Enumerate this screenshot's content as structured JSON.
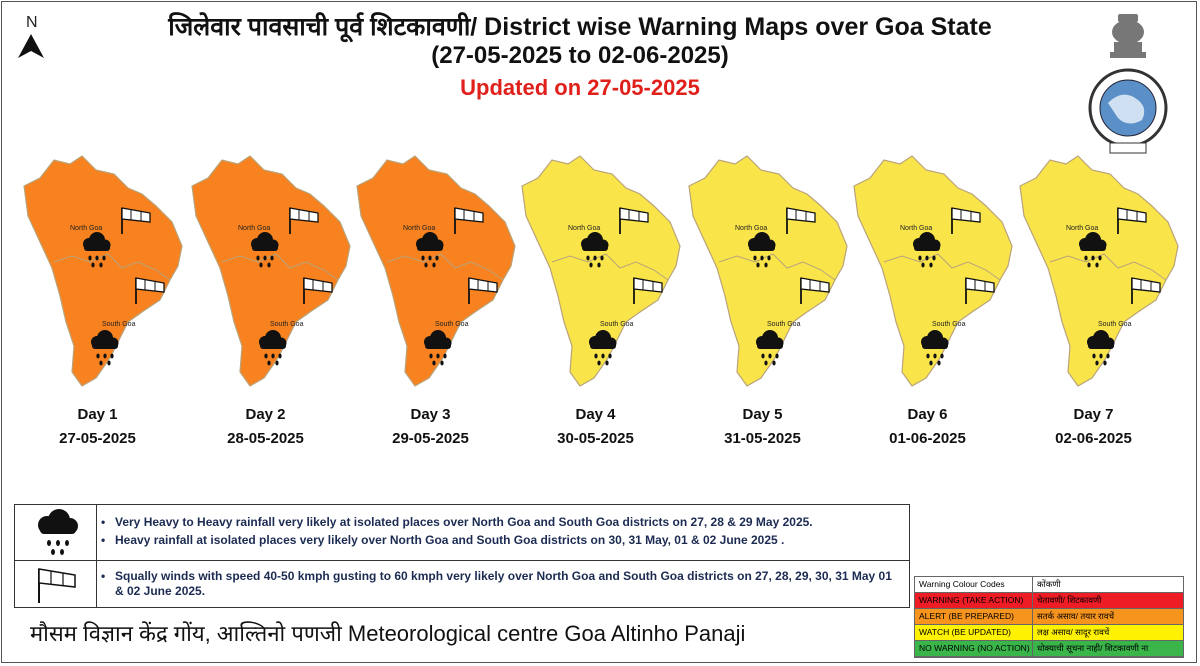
{
  "north_label": "N",
  "title": {
    "line1": "जिलेवार पावसाची पूर्व शिटकावणी/ District wise Warning Maps over Goa State",
    "line2": "(27-05-2025 to 02-06-2025)",
    "updated": "Updated on 27-05-2025"
  },
  "colors": {
    "warning": "#f58220",
    "alert": "#fdb813",
    "watch": "#f7ea5b",
    "no_warning": "#3db94a",
    "map_yellow": "#f9e54a",
    "map_orange": "#f8821f",
    "updated_text": "#e0201b"
  },
  "district_labels": {
    "north": "North Goa",
    "south": "South Goa"
  },
  "days": [
    {
      "label": "Day 1",
      "date": "27-05-2025",
      "level": "warning"
    },
    {
      "label": "Day 2",
      "date": "28-05-2025",
      "level": "warning"
    },
    {
      "label": "Day 3",
      "date": "29-05-2025",
      "level": "warning"
    },
    {
      "label": "Day 4",
      "date": "30-05-2025",
      "level": "watch"
    },
    {
      "label": "Day 5",
      "date": "31-05-2025",
      "level": "watch"
    },
    {
      "label": "Day 6",
      "date": "01-06-2025",
      "level": "watch"
    },
    {
      "label": "Day 7",
      "date": "02-06-2025",
      "level": "watch"
    }
  ],
  "legend": {
    "rain_icon": "heavy-rain-cloud-icon",
    "rain_lines": [
      "Very Heavy to Heavy rainfall very likely at isolated places over North Goa and South Goa districts on 27, 28 & 29 May 2025.",
      "Heavy rainfall at isolated places very likely over North Goa and South Goa districts on 30, 31 May, 01 & 02 June 2025 ."
    ],
    "wind_icon": "windsock-icon",
    "wind_lines": [
      "Squally winds with speed 40-50 kmph gusting to 60 kmph very likely  over North Goa and South Goa districts on 27, 28, 29, 30, 31 May 01 & 02 June 2025."
    ]
  },
  "footer": "मौसम विज्ञान केंद्र गोंय, आल्तिनो पणजी  Meteorological centre Goa Altinho Panaji",
  "colour_codes": {
    "header": [
      "Warning Colour Codes",
      "कोंकणी"
    ],
    "rows": [
      {
        "code": "WARNING (TAKE ACTION)",
        "konkani": "चेतावणी/ शिटकावणी",
        "color": "#ee1c24"
      },
      {
        "code": "ALERT (BE PREPARED)",
        "konkani": "सतर्क  असाव/ तयार रावचें",
        "color": "#f7941d"
      },
      {
        "code": "WATCH (BE UPDATED)",
        "konkani": "लक्ष असाव/ सादूर रावचें",
        "color": "#fff200"
      },
      {
        "code": "NO WARNING (NO ACTION)",
        "konkani": "धोक्याची सूचना नाही/ शिटकावणी ना",
        "color": "#39b54a"
      }
    ]
  }
}
